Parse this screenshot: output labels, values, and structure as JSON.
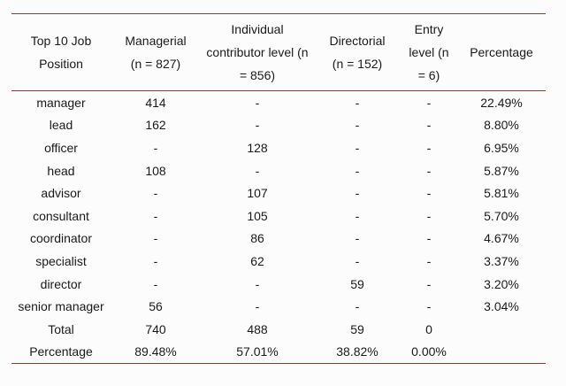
{
  "table": {
    "title_semantic": "Top 10 job positions by level",
    "colors": {
      "rule": "#8e3a39",
      "text": "#1a1a1a",
      "background": "#fcfcfc"
    },
    "columns": [
      {
        "label": "Top 10 Job\nPosition"
      },
      {
        "label": "Managerial\n(n = 827)"
      },
      {
        "label": "Individual\ncontributor level (n\n= 856)"
      },
      {
        "label": "Directorial\n(n = 152)"
      },
      {
        "label": "Entry\nlevel (n\n= 6)"
      },
      {
        "label": "Percentage"
      }
    ],
    "rows": [
      [
        "manager",
        "414",
        "-",
        "-",
        "-",
        "22.49%"
      ],
      [
        "lead",
        "162",
        "-",
        "-",
        "-",
        "8.80%"
      ],
      [
        "officer",
        "-",
        "128",
        "-",
        "-",
        "6.95%"
      ],
      [
        "head",
        "108",
        "-",
        "-",
        "-",
        "5.87%"
      ],
      [
        "advisor",
        "-",
        "107",
        "-",
        "-",
        "5.81%"
      ],
      [
        "consultant",
        "-",
        "105",
        "-",
        "-",
        "5.70%"
      ],
      [
        "coordinator",
        "-",
        "86",
        "-",
        "-",
        "4.67%"
      ],
      [
        "specialist",
        "-",
        "62",
        "-",
        "-",
        "3.37%"
      ],
      [
        "director",
        "-",
        "-",
        "59",
        "-",
        "3.20%"
      ],
      [
        "senior manager",
        "56",
        "-",
        "-",
        "-",
        "3.04%"
      ],
      [
        "Total",
        "740",
        "488",
        "59",
        "0",
        ""
      ],
      [
        "Percentage",
        "89.48%",
        "57.01%",
        "38.82%",
        "0.00%",
        ""
      ]
    ]
  }
}
